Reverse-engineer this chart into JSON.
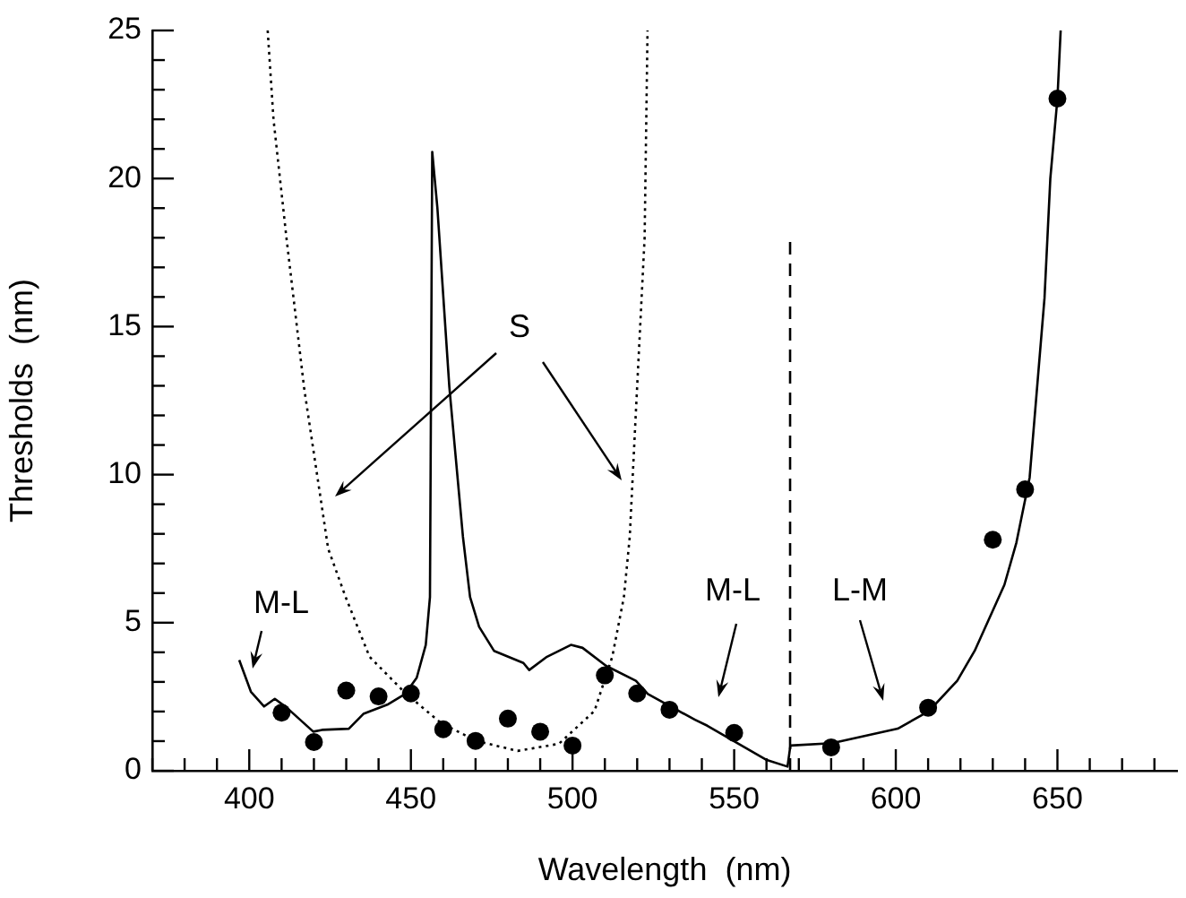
{
  "chart_data": {
    "type": "line",
    "xlabel": "Wavelength  (nm)",
    "ylabel": "Thresholds  (nm)",
    "xlim": [
      370,
      687
    ],
    "ylim": [
      0,
      25
    ],
    "xticks": [
      {
        "value": 370,
        "label": null
      },
      {
        "value": 380,
        "label": null
      },
      {
        "value": 390,
        "label": null
      },
      400,
      {
        "value": 410,
        "label": null
      },
      {
        "value": 420,
        "label": null
      },
      {
        "value": 430,
        "label": null
      },
      {
        "value": 440,
        "label": null
      },
      450,
      {
        "value": 460,
        "label": null
      },
      {
        "value": 470,
        "label": null
      },
      {
        "value": 480,
        "label": null
      },
      {
        "value": 490,
        "label": null
      },
      500,
      {
        "value": 510,
        "label": null
      },
      {
        "value": 520,
        "label": null
      },
      {
        "value": 530,
        "label": null
      },
      {
        "value": 540,
        "label": null
      },
      550,
      {
        "value": 560,
        "label": null
      },
      {
        "value": 570,
        "label": null
      },
      {
        "value": 580,
        "label": null
      },
      {
        "value": 590,
        "label": null
      },
      600,
      {
        "value": 610,
        "label": null
      },
      {
        "value": 620,
        "label": null
      },
      {
        "value": 630,
        "label": null
      },
      {
        "value": 640,
        "label": null
      },
      650,
      {
        "value": 660,
        "label": null
      },
      {
        "value": 670,
        "label": null
      },
      {
        "value": 680,
        "label": null
      }
    ],
    "yticks": [
      0,
      {
        "value": 1,
        "label": null
      },
      {
        "value": 2,
        "label": null
      },
      {
        "value": 3,
        "label": null
      },
      {
        "value": 4,
        "label": null
      },
      5,
      {
        "value": 6,
        "label": null
      },
      {
        "value": 7,
        "label": null
      },
      {
        "value": 8,
        "label": null
      },
      {
        "value": 9,
        "label": null
      },
      10,
      {
        "value": 11,
        "label": null
      },
      {
        "value": 12,
        "label": null
      },
      {
        "value": 13,
        "label": null
      },
      {
        "value": 14,
        "label": null
      },
      15,
      {
        "value": 16,
        "label": null
      },
      {
        "value": 17,
        "label": null
      },
      {
        "value": 18,
        "label": null
      },
      {
        "value": 19,
        "label": null
      },
      20,
      {
        "value": 21,
        "label": null
      },
      {
        "value": 22,
        "label": null
      },
      {
        "value": 23,
        "label": null
      },
      {
        "value": 24,
        "label": null
      },
      25
    ],
    "grid": false,
    "legend": false,
    "series": [
      {
        "color": "#000000",
        "line_style": "solid",
        "marker": "none",
        "x": [
          396.9,
          400.5,
          404.6,
          407.9,
          411.6,
          419.8,
          422.5,
          430.8,
          435.3,
          442.7,
          448.2,
          451.8,
          454.6,
          455.9,
          456.6,
          458.2,
          461.9,
          466.1,
          468.3,
          471.1,
          475.7,
          484.8,
          486.6,
          492.1,
          499.5,
          503.1,
          510.4,
          519.6,
          523.3,
          537.9,
          541.7,
          560.1,
          566.5,
          567.4,
          580.3,
          600.6,
          610.3,
          619,
          624.4,
          633.6,
          637.3,
          641.4,
          646,
          647.8,
          650,
          651
        ],
        "values": [
          3.74,
          2.67,
          2.17,
          2.43,
          2.13,
          1.32,
          1.38,
          1.42,
          1.92,
          2.23,
          2.59,
          3.14,
          4.25,
          5.87,
          20.9,
          19.0,
          12.95,
          7.9,
          5.87,
          4.86,
          4.05,
          3.64,
          3.4,
          3.85,
          4.25,
          4.15,
          3.54,
          3.04,
          2.59,
          1.72,
          1.52,
          0.36,
          0.14,
          0.85,
          0.93,
          1.42,
          2.02,
          3.04,
          4.05,
          6.28,
          7.7,
          9.9,
          15.96,
          20.0,
          22.7,
          25.0
        ]
      },
      {
        "color": "#000000",
        "line_style": "dotted",
        "marker": "none",
        "x": [
          405.7,
          407.5,
          411.5,
          417,
          424.4,
          429.8,
          437.2,
          448.2,
          459.2,
          470.2,
          483,
          495.8,
          506.8,
          512.3,
          515.9,
          517.7,
          519.5,
          522.3,
          523.2
        ],
        "values": [
          25.0,
          22.0,
          18.0,
          12.9,
          7.5,
          5.87,
          3.85,
          2.63,
          1.62,
          1.01,
          0.67,
          0.91,
          2.02,
          3.85,
          5.87,
          7.9,
          11.9,
          18.0,
          25.0
        ]
      },
      {
        "color": "#000000",
        "line_style": "dashed",
        "marker": "none",
        "x": [
          567.3,
          567.3
        ],
        "values": [
          0,
          17.9
        ]
      },
      {
        "type": "scatter",
        "color": "#000000",
        "marker": "circle",
        "x": [
          410,
          420,
          430,
          440,
          450,
          460,
          470,
          480,
          490,
          500,
          510,
          520,
          530,
          550,
          580,
          610,
          630,
          640,
          650
        ],
        "values": [
          1.96,
          0.97,
          2.71,
          2.51,
          2.61,
          1.4,
          1.01,
          1.76,
          1.32,
          0.85,
          3.22,
          2.61,
          2.06,
          1.28,
          0.79,
          2.13,
          7.8,
          9.5,
          22.7
        ]
      }
    ],
    "annotations": [
      "S",
      "M-L",
      "M-L",
      "L-M"
    ]
  }
}
